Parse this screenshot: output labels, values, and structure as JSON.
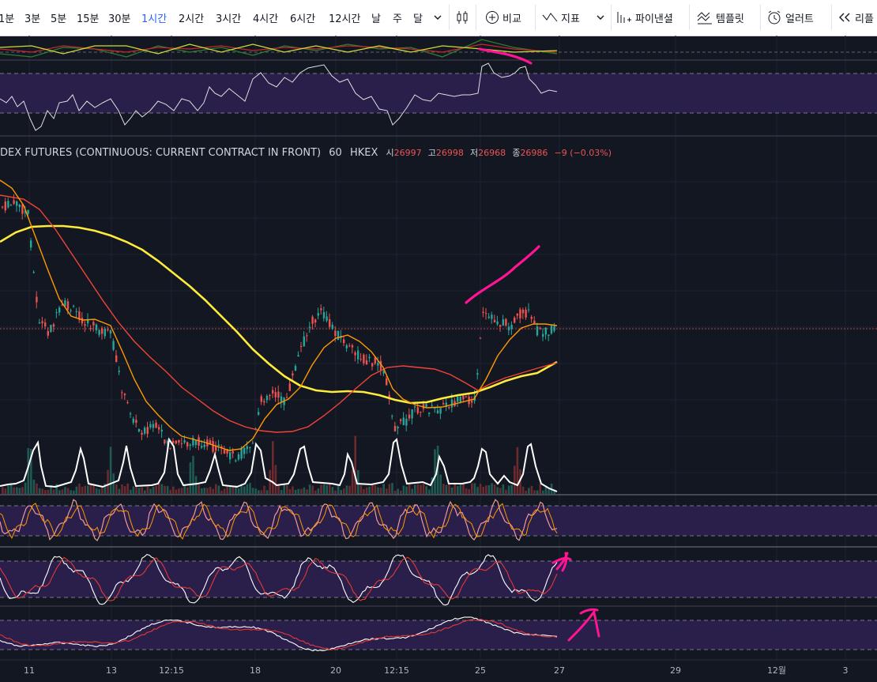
{
  "toolbar": {
    "timeframes": [
      "1분",
      "3분",
      "5분",
      "15분",
      "30분",
      "1시간",
      "2시간",
      "3시간",
      "4시간",
      "6시간",
      "12시간",
      "날",
      "주",
      "달"
    ],
    "active_timeframe": "1시간",
    "compare_label": "비교",
    "indicators_label": "지표",
    "panels_label": "파이낸셜",
    "templates_label": "템플릿",
    "alerts_label": "얼러트",
    "replay_label": "리플"
  },
  "legend": {
    "symbol": "DEX FUTURES (CONTINUOUS: CURRENT CONTRACT IN FRONT)",
    "interval": "60",
    "exchange": "HKEX",
    "open_label": "시",
    "open": "26997",
    "high_label": "고",
    "high": "26998",
    "low_label": "저",
    "low": "26968",
    "close_label": "종",
    "close": "26986",
    "change": "−9 (−0.03%)"
  },
  "colors": {
    "background": "#131722",
    "up": "#26a69a",
    "down": "#ef5350",
    "ma_fast": "#ff9800",
    "ma_mid": "#f44336",
    "ma_slow": "#ffeb3b",
    "band": "#2a1e4a",
    "annotation": "#ff1493"
  },
  "chart_data": {
    "type": "line",
    "x_axis_labels": [
      "11",
      "13",
      "12:15",
      "18",
      "20",
      "12:15",
      "25",
      "27",
      "29",
      "12월",
      "3"
    ],
    "last_price_line": 26986,
    "series": [
      {
        "type": "candlestick",
        "values": [
          [
            -12,
            -2
          ],
          [
            -10,
            2
          ],
          [
            -8,
            2
          ],
          [
            -14,
            -3
          ],
          [
            -18,
            -4
          ],
          [
            -25,
            -6
          ],
          [
            -10,
            -4
          ],
          [
            -4,
            3
          ],
          [
            2,
            7
          ],
          [
            -6,
            -2
          ],
          [
            -12,
            -8
          ],
          [
            -13,
            -9
          ],
          [
            -18,
            -7
          ],
          [
            -24,
            -16
          ],
          [
            -26,
            -22
          ],
          [
            -28,
            -22
          ],
          [
            -32,
            -24
          ],
          [
            -34,
            -28
          ],
          [
            -30,
            -22
          ],
          [
            -26,
            -18
          ],
          [
            -18,
            -6
          ],
          [
            -10,
            4
          ],
          [
            0,
            10
          ],
          [
            6,
            -2
          ],
          [
            -4,
            -8
          ],
          [
            -10,
            -14
          ],
          [
            -12,
            -20
          ],
          [
            -20,
            -24
          ],
          [
            -24,
            -22
          ],
          [
            -22,
            -18
          ],
          [
            -20,
            -14
          ],
          [
            -16,
            -12
          ],
          [
            -18,
            -14
          ],
          [
            -2,
            10
          ],
          [
            12,
            24
          ],
          [
            22,
            20
          ],
          [
            12,
            14
          ],
          [
            8,
            14
          ],
          [
            12,
            18
          ],
          [
            4,
            16
          ]
        ]
      }
    ]
  },
  "annotations": [
    "pink-stroke-rsi",
    "pink-stroke-price",
    "pink-arrow-stoch",
    "pink-arrow-stoch-rsi"
  ]
}
